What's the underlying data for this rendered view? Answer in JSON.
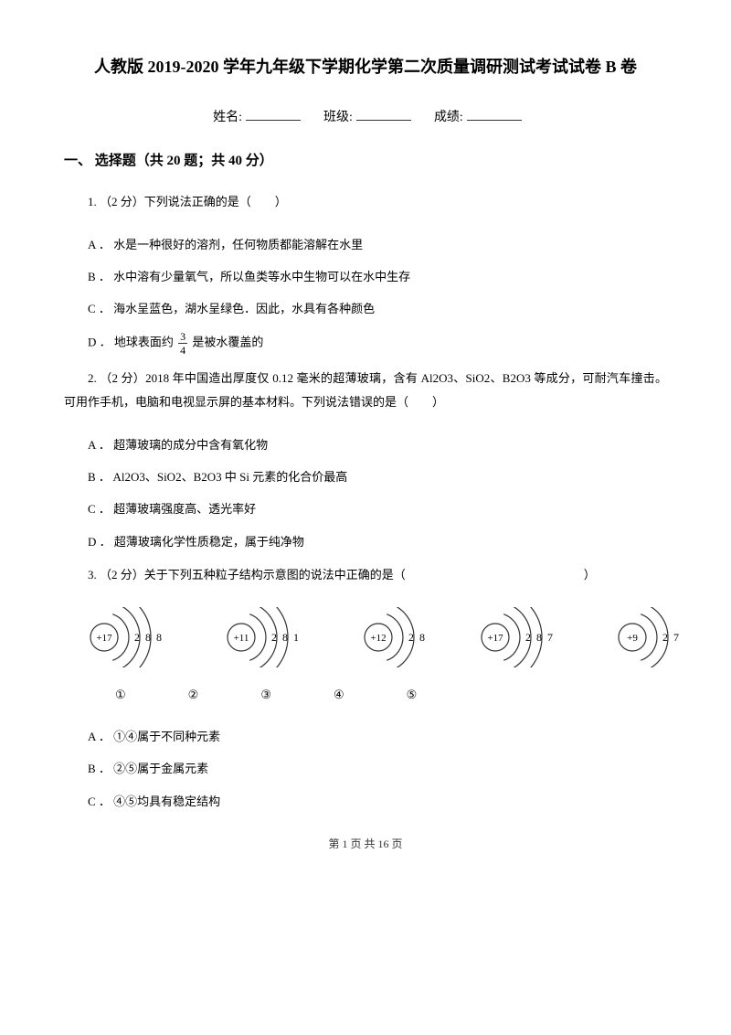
{
  "title": "人教版 2019-2020 学年九年级下学期化学第二次质量调研测试考试试卷 B 卷",
  "meta": {
    "name_label": "姓名:",
    "class_label": "班级:",
    "score_label": "成绩:"
  },
  "section": {
    "header": "一、 选择题（共 20 题；共 40 分）"
  },
  "q1": {
    "stem": "1. （2 分）下列说法正确的是（　　）",
    "a": "A ． 水是一种很好的溶剂，任何物质都能溶解在水里",
    "b": "B ． 水中溶有少量氧气，所以鱼类等水中生物可以在水中生存",
    "c": "C ． 海水呈蓝色，湖水呈绿色．因此，水具有各种颜色",
    "d_left": "D ． 地球表面约 ",
    "d_right": " 是被水覆盖的",
    "frac_num": "3",
    "frac_den": "4"
  },
  "q2": {
    "stem": "2. （2 分）2018 年中国造出厚度仅 0.12 毫米的超薄玻璃，含有 Al2O3、SiO2、B2O3 等成分，可耐汽车撞击。 可用作手机，电脑和电视显示屏的基本材料。下列说法错误的是（　　）",
    "a": "A ． 超薄玻璃的成分中含有氧化物",
    "b": "B ． Al2O3、SiO2、B2O3 中 Si 元素的化合价最高",
    "c": "C ． 超薄玻璃强度高、透光率好",
    "d": "D ． 超薄玻璃化学性质稳定，属于纯净物"
  },
  "q3": {
    "stem": "3.        （2 分）关于下列五种粒子结构示意图的说法中正确的是（　　　　　　　　　　　　　　　）",
    "atoms": [
      {
        "nucleus": "+17",
        "shells": [
          "2",
          "8",
          "8"
        ]
      },
      {
        "nucleus": "+11",
        "shells": [
          "2",
          "8",
          "1"
        ]
      },
      {
        "nucleus": "+12",
        "shells": [
          "2",
          "8"
        ]
      },
      {
        "nucleus": "+17",
        "shells": [
          "2",
          "8",
          "7"
        ]
      },
      {
        "nucleus": "+9",
        "shells": [
          "2",
          "7"
        ]
      }
    ],
    "labels": [
      "①",
      "②",
      "③",
      "④",
      "⑤"
    ],
    "a": "A ． ①④属于不同种元素",
    "b": "B ． ②⑤属于金属元素",
    "c": "C ． ④⑤均具有稳定结构"
  },
  "footer": {
    "text": "第 1 页 共 16 页"
  },
  "colors": {
    "text": "#000000",
    "bg": "#ffffff",
    "border": "#333333"
  }
}
